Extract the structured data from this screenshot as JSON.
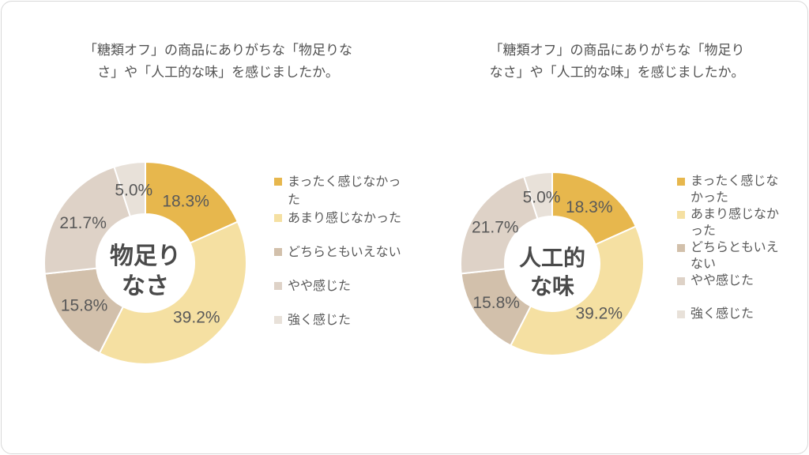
{
  "page": {
    "background": "#ffffff",
    "border_color": "#d8d8d8"
  },
  "styles": {
    "title_color": "#535353",
    "value_label_color": "#595959",
    "legend_text_color": "#595959",
    "center_label_color": "#4a4a4a"
  },
  "chart_data": [
    {
      "id": "monotarinasa",
      "type": "pie",
      "donut": true,
      "title": "「糖類オフ」の商品にありがちな「物足りな\nさ」や「人工的な味」を感じましたか。",
      "center_label": "物足り\nなさ",
      "categories": [
        "まったく感じなかった",
        "あまり感じなかった",
        "どちらともいえない",
        "やや感じた",
        "強く感じた"
      ],
      "values": [
        18.3,
        39.2,
        15.8,
        21.7,
        5.0
      ],
      "value_labels": [
        "18.3%",
        "39.2%",
        "15.8%",
        "21.7%",
        "5.0%"
      ],
      "colors": [
        "#e7b74d",
        "#f5e0a2",
        "#d2c0ab",
        "#ded2c7",
        "#e8e1d9"
      ],
      "start_angle_deg": 0,
      "direction": "clockwise",
      "legend_position": "right"
    },
    {
      "id": "jinkoteki-na-aji",
      "type": "pie",
      "donut": true,
      "title": "「糖類オフ」の商品にありがちな「物足り\nなさ」や「人工的な味」を感じましたか。",
      "center_label": "人工的\nな味",
      "categories": [
        "まったく感じなかった",
        "あまり感じなかった",
        "どちらともいえない",
        "やや感じた",
        "強く感じた"
      ],
      "values": [
        18.3,
        39.2,
        15.8,
        21.7,
        5.0
      ],
      "value_labels": [
        "18.3%",
        "39.2%",
        "15.8%",
        "21.7%",
        "5.0%"
      ],
      "colors": [
        "#e7b74d",
        "#f5e0a2",
        "#d2c0ab",
        "#ded2c7",
        "#e8e1d9"
      ],
      "start_angle_deg": 0,
      "direction": "clockwise",
      "legend_position": "right"
    }
  ]
}
